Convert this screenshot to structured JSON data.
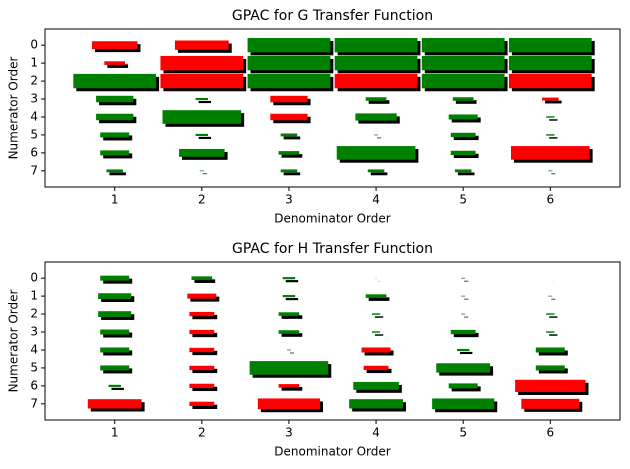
{
  "chart_data": [
    {
      "type": "hinton",
      "title": "GPAC for G Transfer Function",
      "x_label": "Denominator Order",
      "y_label": "Numerator Order",
      "xticks": [
        1,
        2,
        3,
        4,
        5,
        6
      ],
      "yticks": [
        0,
        1,
        2,
        3,
        4,
        5,
        6,
        7
      ],
      "xlim": [
        0.2,
        6.8
      ],
      "ylim": [
        7.9,
        -0.9
      ],
      "positive_color": "#008000",
      "negative_color": "#ff0000",
      "values": [
        [
          -0.55,
          -0.65,
          1.0,
          1.0,
          1.0,
          1.0
        ],
        [
          -0.25,
          -1.0,
          1.0,
          1.0,
          1.0,
          1.0
        ],
        [
          1.0,
          -1.0,
          1.0,
          -1.0,
          1.0,
          -1.0
        ],
        [
          0.45,
          0.15,
          -0.45,
          0.25,
          0.25,
          -0.2
        ],
        [
          0.45,
          0.95,
          -0.45,
          0.5,
          0.35,
          0.1
        ],
        [
          0.35,
          0.15,
          0.2,
          0.05,
          0.3,
          0.1
        ],
        [
          0.35,
          0.55,
          0.25,
          0.95,
          0.3,
          -0.95
        ],
        [
          0.2,
          0.05,
          0.2,
          0.2,
          0.2,
          0.05
        ]
      ]
    },
    {
      "type": "hinton",
      "title": "GPAC for H Transfer Function",
      "x_label": "Denominator Order",
      "y_label": "Numerator Order",
      "xticks": [
        1,
        2,
        3,
        4,
        5,
        6
      ],
      "yticks": [
        0,
        1,
        2,
        3,
        4,
        5,
        6,
        7
      ],
      "xlim": [
        0.2,
        6.8
      ],
      "ylim": [
        7.9,
        -0.9
      ],
      "positive_color": "#008000",
      "negative_color": "#ff0000",
      "values": [
        [
          0.35,
          0.25,
          0.15,
          0.02,
          0.05,
          0.01
        ],
        [
          0.4,
          -0.35,
          0.15,
          0.25,
          0.05,
          0.05
        ],
        [
          0.4,
          -0.3,
          0.25,
          0.1,
          0.05,
          0.1
        ],
        [
          0.35,
          -0.3,
          0.25,
          0.1,
          0.3,
          0.1
        ],
        [
          0.35,
          -0.3,
          0.05,
          -0.35,
          0.15,
          0.35
        ],
        [
          0.35,
          -0.3,
          0.95,
          -0.3,
          0.65,
          0.35
        ],
        [
          0.15,
          -0.3,
          -0.25,
          0.55,
          0.35,
          -0.85
        ],
        [
          -0.65,
          -0.3,
          -0.75,
          0.65,
          0.75,
          -0.7
        ]
      ]
    }
  ]
}
